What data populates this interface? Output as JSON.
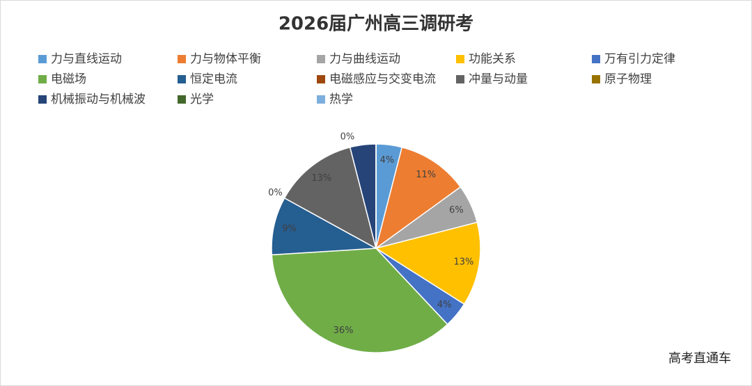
{
  "chart_data": {
    "type": "pie",
    "title": "2026届广州高三调研考",
    "categories": [
      "力与直线运动",
      "力与物体平衡",
      "力与曲线运动",
      "功能关系",
      "万有引力定律",
      "电磁场",
      "恒定电流",
      "电磁感应与交变电流",
      "冲量与动量",
      "原子物理",
      "机械振动与机械波",
      "光学",
      "热学"
    ],
    "values": [
      4,
      11,
      6,
      13,
      4,
      36,
      9,
      0,
      13,
      0,
      4,
      0,
      0
    ],
    "value_labels": [
      "4%",
      "11%",
      "6%",
      "13%",
      "4%",
      "36%",
      "9%",
      "0%",
      "13%",
      "0%",
      null,
      null,
      null
    ],
    "colors": [
      "#5b9bd5",
      "#ed7d31",
      "#a5a5a5",
      "#ffc000",
      "#4472c4",
      "#70ad47",
      "#255e91",
      "#9e480e",
      "#636363",
      "#997300",
      "#264478",
      "#43682b",
      "#7cafdd"
    ],
    "legend": "top",
    "source_note": "高考直通车"
  }
}
